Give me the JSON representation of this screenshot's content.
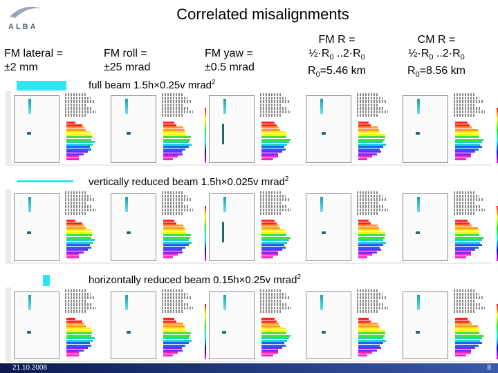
{
  "logo": {
    "text": "ALBA"
  },
  "title": "Correlated misalignments",
  "columns": [
    {
      "id": "fm-lateral",
      "line1": "FM lateral =",
      "line2": "±2 mm"
    },
    {
      "id": "fm-roll",
      "line1": "FM roll =",
      "line2": "±25 mrad"
    },
    {
      "id": "fm-yaw",
      "line1": "FM yaw =",
      "line2": "±0.5 mrad"
    },
    {
      "id": "fm-r",
      "line1": "FM R =",
      "line2_main": "½·R",
      "line2_sub0": "0",
      "line2_mid": " ..2·R",
      "line2_sub1": "0",
      "line3_main": "R",
      "line3_sub": "0",
      "line3_rest": "=5.46 km"
    },
    {
      "id": "cm-r",
      "line1": "CM R =",
      "line2_main": "½·R",
      "line2_sub0": "0",
      "line2_mid": " ..2·R",
      "line2_sub1": "0",
      "line3_main": "R",
      "line3_sub": "0",
      "line3_rest": "=8.56 km"
    }
  ],
  "beams": [
    {
      "label": "full beam 1.5h×0.25v mrad",
      "sup": "2",
      "swatch_color": "#2ee6f0"
    },
    {
      "label": "vertically reduced beam 1.5h×0.025v mrad",
      "sup": "2",
      "swatch_color": "#2ee6f0"
    },
    {
      "label": "horizontally reduced beam 0.15h×0.25v mrad",
      "sup": "2",
      "swatch_color": "#2ee6f0"
    }
  ],
  "footer": {
    "date": "21.10.2008",
    "page": "8"
  },
  "colors": {
    "accent": "#2ee6f0",
    "footer_bar": "#1a2f78"
  }
}
